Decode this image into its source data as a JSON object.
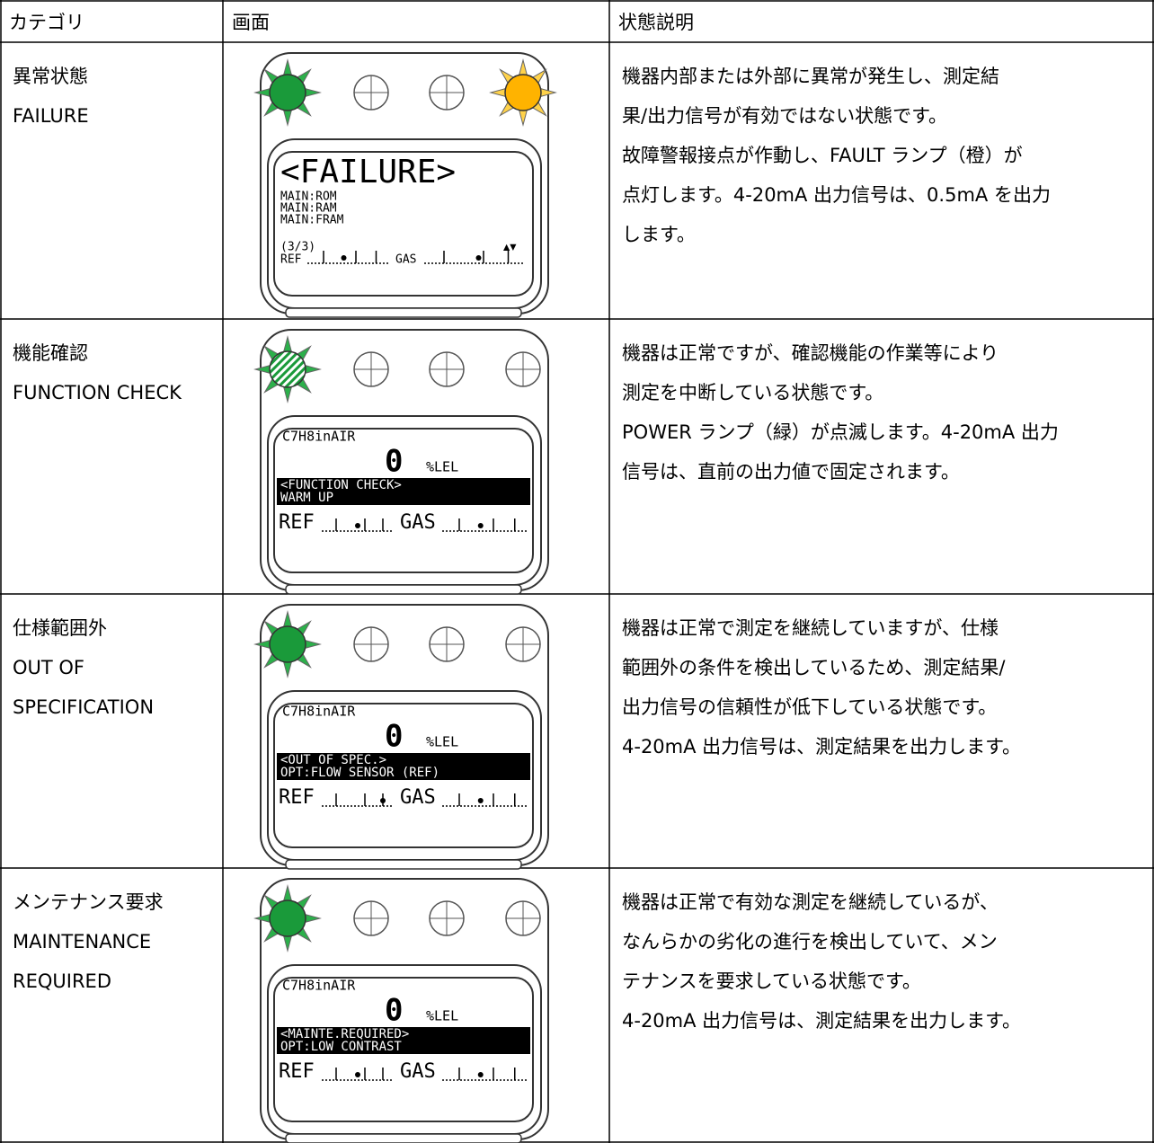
{
  "table": {
    "header": [
      "カテゴリ",
      "画面",
      "状態説明"
    ],
    "rows": [
      {
        "category": [
          "異常状態",
          "FAILURE"
        ],
        "screen": {
          "title": "<FAILURE>",
          "details": [
            "MAIN:ROM",
            "MAIN:RAM",
            "MAIN:FRAM"
          ],
          "page": "(3/3)",
          "arrows": "▲▼",
          "ref": "REF",
          "gas": "GAS"
        },
        "description": [
          "機器内部または外部に異常が発生し、測定結",
          "果/出力信号が有効ではない状態です。",
          "故障警報接点が作動し、FAULT ランプ（橙）が",
          "点灯します。4-20mA 出力信号は、0.5mA を出力",
          "します。"
        ]
      },
      {
        "category": [
          "機能確認",
          "FUNCTION CHECK"
        ],
        "screen": {
          "gas_name": "C7H8inAIR",
          "reading": "0",
          "unit": "%LEL",
          "banner": [
            "<FUNCTION CHECK>",
            "WARM UP"
          ],
          "ref": "REF",
          "gas": "GAS"
        },
        "description": [
          "機器は正常ですが、確認機能の作業等により",
          "測定を中断している状態です。",
          "POWER ランプ（緑）が点滅します。4-20mA 出力",
          "信号は、直前の出力値で固定されます。"
        ]
      },
      {
        "category": [
          "仕様範囲外",
          "OUT OF",
          " SPECIFICATION"
        ],
        "screen": {
          "gas_name": "C7H8inAIR",
          "reading": "0",
          "unit": "%LEL",
          "banner": [
            "<OUT OF SPEC.>",
            "OPT:FLOW SENSOR (REF)"
          ],
          "ref": "REF",
          "gas": "GAS"
        },
        "description": [
          "機器は正常で測定を継続していますが、仕様",
          "範囲外の条件を検出しているため、測定結果/",
          "出力信号の信頼性が低下している状態です。",
          "4-20mA 出力信号は、測定結果を出力します。"
        ]
      },
      {
        "category": [
          "メンテナンス要求",
          "MAINTENANCE",
          "REQUIRED"
        ],
        "screen": {
          "gas_name": "C7H8inAIR",
          "reading": "0",
          "unit": "%LEL",
          "banner": [
            "<MAINTE.REQUIRED>",
            "OPT:LOW CONTRAST"
          ],
          "ref": "REF",
          "gas": "GAS"
        },
        "description": [
          "機器は正常で有効な測定を継続しているが、",
          "なんらかの劣化の進行を検出していて、メン",
          "テナンスを要求している状態です。",
          "4-20mA 出力信号は、測定結果を出力します。"
        ]
      }
    ]
  }
}
